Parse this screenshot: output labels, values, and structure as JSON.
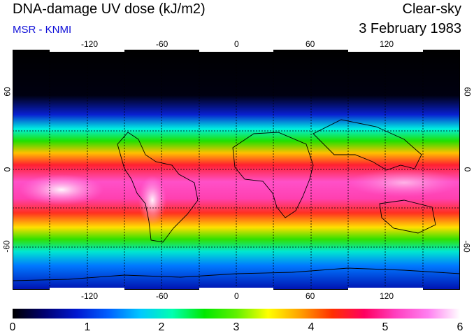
{
  "title": "DNA-damage UV dose (kJ/m2)",
  "subtitle": "MSR - KNMI",
  "condition": "Clear-sky",
  "date": "3 February 1983",
  "map": {
    "lon_ticks": [
      "-120",
      "-60",
      "0",
      "60",
      "120"
    ],
    "lat_ticks_left": [
      "60",
      "0",
      "-60"
    ],
    "lat_ticks_right": [
      "60",
      "0",
      "-60"
    ]
  },
  "colorbar": {
    "labels": [
      "0",
      "1",
      "2",
      "3",
      "4",
      "5",
      "6"
    ],
    "colors": [
      "#000000",
      "#000070",
      "#0018d0",
      "#0060ff",
      "#00c8ff",
      "#00ffb0",
      "#00e800",
      "#60f000",
      "#ffff00",
      "#ffa000",
      "#ff3000",
      "#ff0060",
      "#ff40c0",
      "#ff80f0",
      "#ffffff"
    ]
  }
}
